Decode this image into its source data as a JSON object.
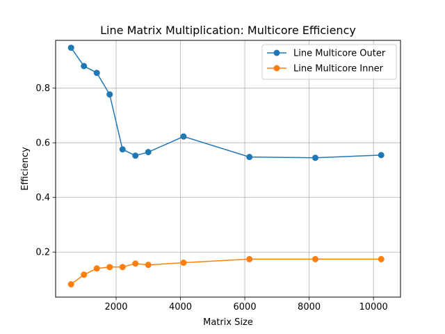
{
  "chart_data": {
    "type": "line",
    "title": "Line Matrix Multiplication: Multicore Efficiency",
    "xlabel": "Matrix Size",
    "ylabel": "Efficiency",
    "xlim": [
      120,
      10840
    ],
    "ylim": [
      0.035,
      0.975
    ],
    "xticks": [
      2000,
      4000,
      6000,
      8000,
      10000
    ],
    "yticks": [
      0.2,
      0.4,
      0.6,
      0.8
    ],
    "grid": true,
    "legend_position": "top-right",
    "series": [
      {
        "name": "Line Multicore Outer",
        "color": "#1f77b4",
        "x": [
          600,
          1000,
          1400,
          1800,
          2200,
          2600,
          3000,
          4096,
          6144,
          8192,
          10240
        ],
        "y": [
          0.948,
          0.881,
          0.856,
          0.777,
          0.576,
          0.553,
          0.566,
          0.623,
          0.548,
          0.545,
          0.555
        ]
      },
      {
        "name": "Line Multicore Inner",
        "color": "#ff7f0e",
        "x": [
          600,
          1000,
          1400,
          1800,
          2200,
          2600,
          3000,
          4096,
          6144,
          8192,
          10240
        ],
        "y": [
          0.082,
          0.117,
          0.14,
          0.145,
          0.145,
          0.158,
          0.153,
          0.161,
          0.174,
          0.174,
          0.174
        ]
      }
    ]
  }
}
